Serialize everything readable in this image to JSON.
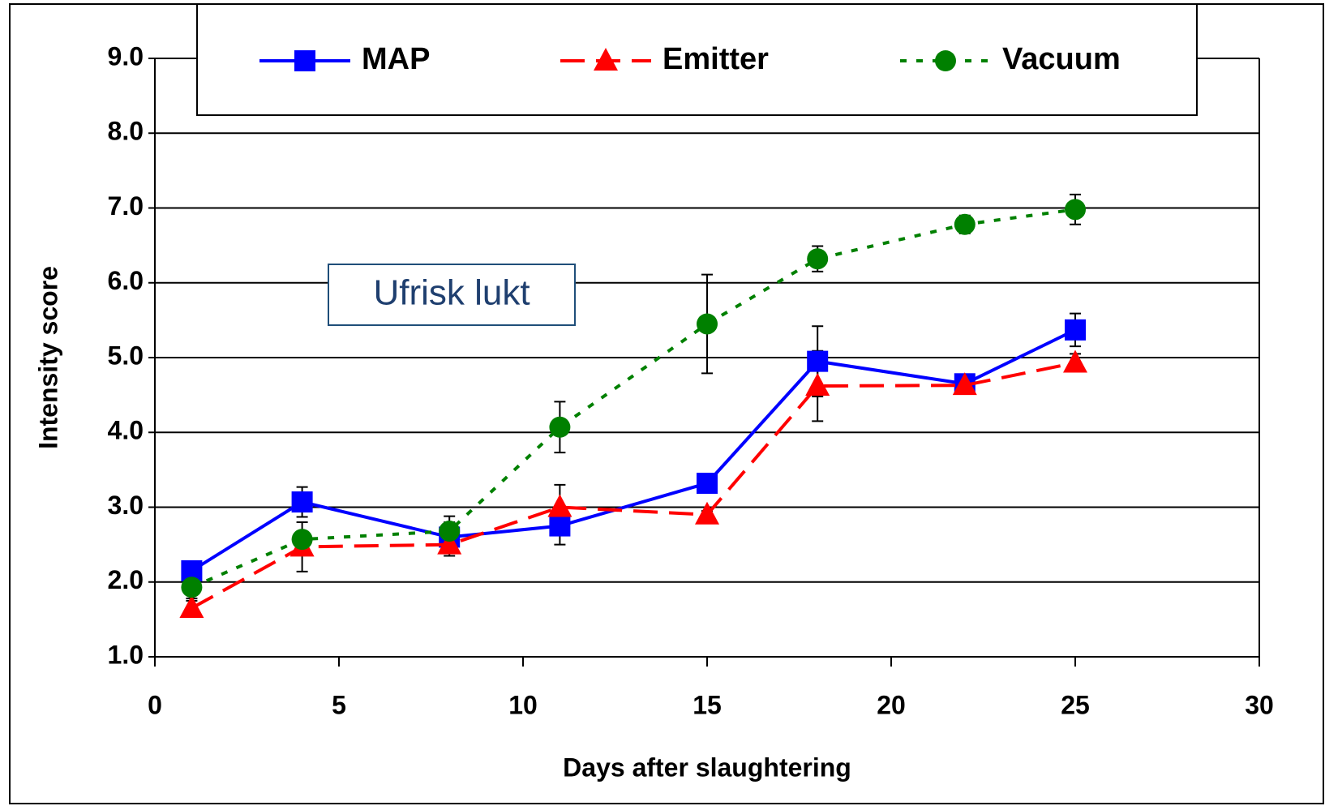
{
  "chart_data": {
    "type": "line",
    "x_label": "Days after slaughtering",
    "y_label": "Intensity score",
    "annotation": "Ufrisk lukt",
    "x": [
      1,
      4,
      8,
      11,
      15,
      18,
      22,
      25
    ],
    "series": [
      {
        "name": "MAP",
        "color": "#0000ff",
        "marker": "square",
        "dash": "solid",
        "values": [
          2.15,
          3.07,
          2.6,
          2.75,
          3.32,
          4.95,
          4.65,
          5.37
        ],
        "errors": [
          0.05,
          0.2,
          0.2,
          0.25,
          0.05,
          0.47,
          0.05,
          0.22
        ]
      },
      {
        "name": "Emitter",
        "color": "#ff0000",
        "marker": "triangle",
        "dash": "dashed",
        "values": [
          1.65,
          2.47,
          2.5,
          3.0,
          2.9,
          4.62,
          4.63,
          4.93
        ],
        "errors": [
          0.1,
          0.33,
          0.15,
          0.3,
          0.05,
          0.47,
          0.05,
          0.12
        ]
      },
      {
        "name": "Vacuum",
        "color": "#008000",
        "marker": "circle",
        "dash": "dotted",
        "values": [
          1.93,
          2.57,
          2.68,
          4.07,
          5.45,
          6.32,
          6.78,
          6.98
        ],
        "errors": [
          0.15,
          0.1,
          0.2,
          0.34,
          0.66,
          0.17,
          0.12,
          0.2
        ]
      }
    ],
    "xlim": [
      0,
      30
    ],
    "xticks": [
      0,
      5,
      10,
      15,
      20,
      25,
      30
    ],
    "ylim": [
      1,
      9
    ],
    "yticks": [
      {
        "value": 1,
        "label": "1.0"
      },
      {
        "value": 2,
        "label": "2.0"
      },
      {
        "value": 3,
        "label": "3.0"
      },
      {
        "value": 4,
        "label": "4.0"
      },
      {
        "value": 5,
        "label": "5.0"
      },
      {
        "value": 6,
        "label": "6.0"
      },
      {
        "value": 7,
        "label": "7.0"
      },
      {
        "value": 8,
        "label": "8.0"
      },
      {
        "value": 9,
        "label": "9.0"
      }
    ],
    "grid": true,
    "legend": "top"
  }
}
